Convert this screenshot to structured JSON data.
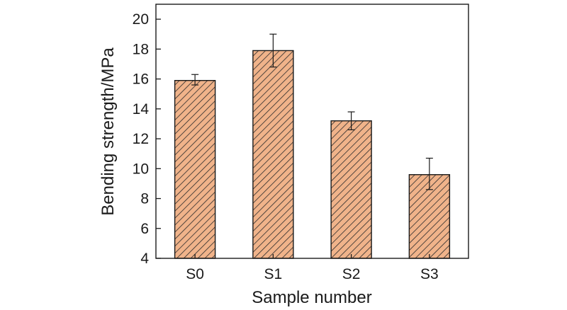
{
  "chart_data": {
    "type": "bar",
    "title": "",
    "xlabel": "Sample number",
    "ylabel": "Bending strength/MPa",
    "categories": [
      "S0",
      "S1",
      "S2",
      "S3"
    ],
    "values": [
      15.9,
      17.9,
      13.2,
      9.6
    ],
    "error_low": [
      15.6,
      16.8,
      12.6,
      8.6
    ],
    "error_high": [
      16.3,
      19.0,
      13.8,
      10.7
    ],
    "ylim": [
      4,
      21
    ],
    "yticks": [
      4,
      6,
      8,
      10,
      12,
      14,
      16,
      18,
      20
    ],
    "ytick_labels": [
      "4",
      "6",
      "8",
      "10",
      "12",
      "14",
      "16",
      "18",
      "20"
    ],
    "grid": false,
    "legend": "none",
    "bar_fill_color": "#f0b38a",
    "bar_hatch_color": "#2b2b2b",
    "bar_edge_color": "#1a1a1a",
    "bar_pattern": "diagonal-hatch"
  }
}
